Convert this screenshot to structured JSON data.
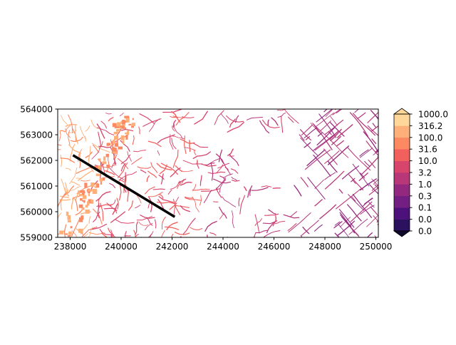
{
  "chart_data": {
    "type": "heatmap",
    "title": "",
    "xlabel": "",
    "ylabel": "",
    "xlim": [
      237400,
      250000
    ],
    "ylim": [
      559000,
      564000
    ],
    "x_ticks": [
      "238000",
      "240000",
      "242000",
      "244000",
      "246000",
      "248000",
      "250000"
    ],
    "x_tick_values": [
      238000,
      240000,
      242000,
      244000,
      246000,
      248000,
      250000
    ],
    "y_ticks": [
      "559000",
      "560000",
      "561000",
      "562000",
      "563000",
      "564000"
    ],
    "y_tick_values": [
      559000,
      560000,
      561000,
      562000,
      563000,
      564000
    ],
    "colorbar": {
      "labels": [
        "0.0",
        "0.0",
        "0.1",
        "0.3",
        "1.0",
        "3.2",
        "10.0",
        "31.6",
        "100.0",
        "316.2",
        "1000.0"
      ],
      "colors": [
        "#100b2d",
        "#2c115f",
        "#4c117a",
        "#721f81",
        "#93287f",
        "#b73779",
        "#d8456c",
        "#f1605d",
        "#fc8961",
        "#feb078",
        "#fed799"
      ],
      "extend": "both"
    },
    "transect": {
      "color": "#000000",
      "points": [
        [
          238000,
          562200
        ],
        [
          242000,
          559800
        ]
      ]
    }
  }
}
